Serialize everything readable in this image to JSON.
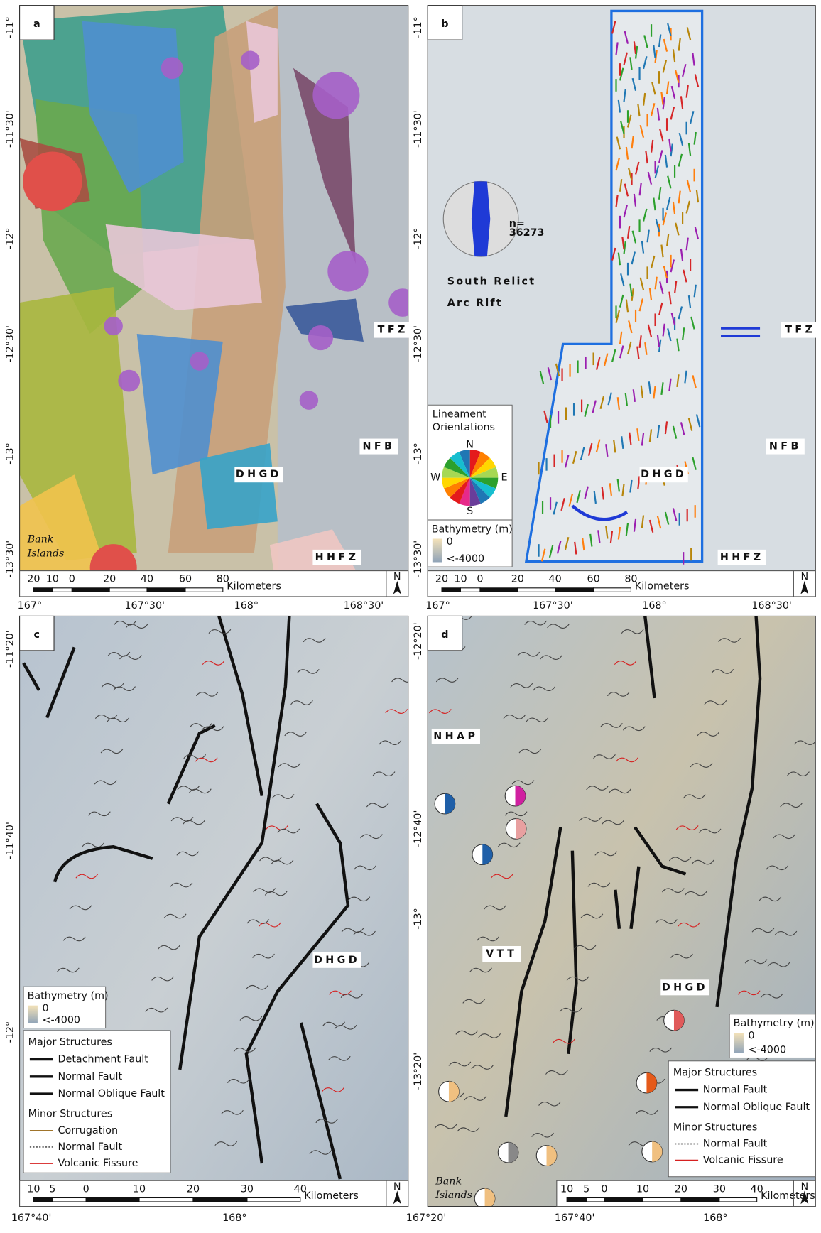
{
  "panels": [
    {
      "letter": "a",
      "lat_labels": [
        "-11°",
        "-11°30'",
        "-12°",
        "-12°30'",
        "-13°",
        "-13°30'"
      ],
      "lon_labels": [
        "167°",
        "167°30'",
        "168°",
        "168°30'"
      ],
      "place_labels": [
        "TFZ",
        "NFB",
        "DHGD",
        "HHFZ"
      ],
      "bank_islands": [
        "Bank",
        "Islands"
      ],
      "scale_labels": [
        "20",
        "10",
        "0",
        "20",
        "40",
        "60",
        "80"
      ],
      "scale_unit": "Kilometers",
      "north": "N"
    },
    {
      "letter": "b",
      "lat_labels": [
        "-11°",
        "-11°30'",
        "-12°",
        "-12°30'",
        "-13°",
        "-13°30'"
      ],
      "lon_labels": [
        "167°",
        "167°30'",
        "168°",
        "168°30'"
      ],
      "place_labels": [
        "TFZ",
        "NFB",
        "DHGD",
        "HHFZ"
      ],
      "rose_count": [
        "n=",
        "36273"
      ],
      "region_title": [
        "South Relict",
        "Arc Rift"
      ],
      "orientation_legend": {
        "title": [
          "Lineament",
          "Orientations"
        ],
        "compass": [
          "N",
          "E",
          "S",
          "W"
        ]
      },
      "bathymetry": {
        "title": "Bathymetry (m)",
        "max": "0",
        "min": "<-4000"
      },
      "scale_labels": [
        "20",
        "10",
        "0",
        "20",
        "40",
        "60",
        "80"
      ],
      "scale_unit": "Kilometers",
      "north": "N"
    },
    {
      "letter": "c",
      "lat_labels": [
        "-11°20'",
        "-11°40'",
        "-12°"
      ],
      "lon_labels": [
        "167°40'",
        "168°"
      ],
      "place_labels": [
        "DHGD"
      ],
      "bathymetry": {
        "title": "Bathymetry (m)",
        "max": "0",
        "min": "<-4000"
      },
      "legend": {
        "major_title": "Major Structures",
        "major": [
          "Detachment Fault",
          "Normal Fault",
          "Normal Oblique Fault"
        ],
        "minor_title": "Minor Structures",
        "minor": [
          "Corrugation",
          "Normal Fault",
          "Volcanic Fissure"
        ]
      },
      "scale_labels": [
        "10",
        "5",
        "0",
        "10",
        "20",
        "30",
        "40"
      ],
      "scale_unit": "Kilometers",
      "north": "N"
    },
    {
      "letter": "d",
      "lat_labels": [
        "-12°20'",
        "-12°40'",
        "-13°",
        "-13°20'"
      ],
      "lon_labels": [
        "167°20'",
        "167°40'",
        "168°"
      ],
      "place_labels": [
        "NHAP",
        "VTT",
        "DHGD"
      ],
      "bank_islands": [
        "Bank",
        "Islands"
      ],
      "bathymetry": {
        "title": "Bathymetry (m)",
        "max": "0",
        "min": "<-4000"
      },
      "legend": {
        "major_title": "Major Structures",
        "major": [
          "Normal Fault",
          "Normal Oblique Fault"
        ],
        "minor_title": "Minor Structures",
        "minor": [
          "Normal Fault",
          "Volcanic Fissure"
        ]
      },
      "scale_labels": [
        "10",
        "5",
        "0",
        "10",
        "20",
        "30",
        "40"
      ],
      "scale_unit": "Kilometers",
      "north": "N"
    }
  ]
}
